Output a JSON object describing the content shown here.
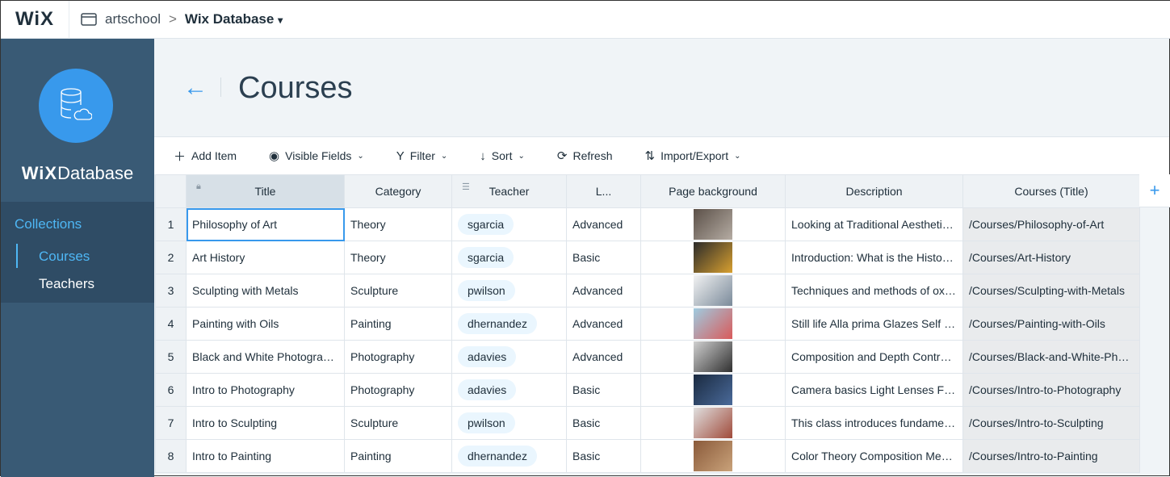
{
  "topbar": {
    "logo": "WiX",
    "site": "artschool",
    "separator": ">",
    "current": "Wix Database",
    "caret": "▾"
  },
  "sidebar": {
    "brand_bold": "WiX",
    "brand_rest": "Database",
    "collections_label": "Collections",
    "items": [
      {
        "label": "Courses",
        "active": true
      },
      {
        "label": "Teachers",
        "active": false
      }
    ]
  },
  "page": {
    "title": "Courses",
    "back": "←"
  },
  "toolbar": {
    "add": "Add Item",
    "visible": "Visible Fields",
    "filter": "Filter",
    "sort": "Sort",
    "refresh": "Refresh",
    "import": "Import/Export"
  },
  "columns": [
    "Title",
    "Category",
    "Teacher",
    "L...",
    "Page background",
    "Description",
    "Courses (Title)"
  ],
  "add_column": "+",
  "rows": [
    {
      "n": "1",
      "title": "Philosophy of Art",
      "category": "Theory",
      "teacher": "sgarcia",
      "level": "Advanced",
      "img": [
        "#5b5048",
        "#b5aca3"
      ],
      "desc": "Looking at Traditional Aesthetic...",
      "link": "/Courses/Philosophy-of-Art"
    },
    {
      "n": "2",
      "title": "Art History",
      "category": "Theory",
      "teacher": "sgarcia",
      "level": "Basic",
      "img": [
        "#2a2a2a",
        "#d8a030"
      ],
      "desc": "Introduction: What is the History...",
      "link": "/Courses/Art-History"
    },
    {
      "n": "3",
      "title": "Sculpting with Metals",
      "category": "Sculpture",
      "teacher": "pwilson",
      "level": "Advanced",
      "img": [
        "#f2f2f2",
        "#7a8a9a"
      ],
      "desc": "Techniques and methods of oxy...",
      "link": "/Courses/Sculpting-with-Metals"
    },
    {
      "n": "4",
      "title": "Painting with Oils",
      "category": "Painting",
      "teacher": "dhernandez",
      "level": "Advanced",
      "img": [
        "#9fcbe0",
        "#d95a5a"
      ],
      "desc": "Still life Alla prima Glazes Self p...",
      "link": "/Courses/Painting-with-Oils"
    },
    {
      "n": "5",
      "title": "Black and White Photography",
      "category": "Photography",
      "teacher": "adavies",
      "level": "Advanced",
      "img": [
        "#d0d0d0",
        "#303030"
      ],
      "desc": "Composition and Depth Contras...",
      "link": "/Courses/Black-and-White-Phot..."
    },
    {
      "n": "6",
      "title": "Intro to Photography",
      "category": "Photography",
      "teacher": "adavies",
      "level": "Basic",
      "img": [
        "#1a2a40",
        "#4a6a9a"
      ],
      "desc": "Camera basics Light Lenses Filt...",
      "link": "/Courses/Intro-to-Photography"
    },
    {
      "n": "7",
      "title": "Intro to Sculpting",
      "category": "Sculpture",
      "teacher": "pwilson",
      "level": "Basic",
      "img": [
        "#e0e0e0",
        "#a04a3a"
      ],
      "desc": "This class introduces fundament...",
      "link": "/Courses/Intro-to-Sculpting"
    },
    {
      "n": "8",
      "title": "Intro to Painting",
      "category": "Painting",
      "teacher": "dhernandez",
      "level": "Basic",
      "img": [
        "#8a5a3a",
        "#c9a27a"
      ],
      "desc": "Color Theory Composition Medi...",
      "link": "/Courses/Intro-to-Painting"
    }
  ],
  "colors": {
    "accent": "#3899ec",
    "sidebar": "#395a75"
  }
}
